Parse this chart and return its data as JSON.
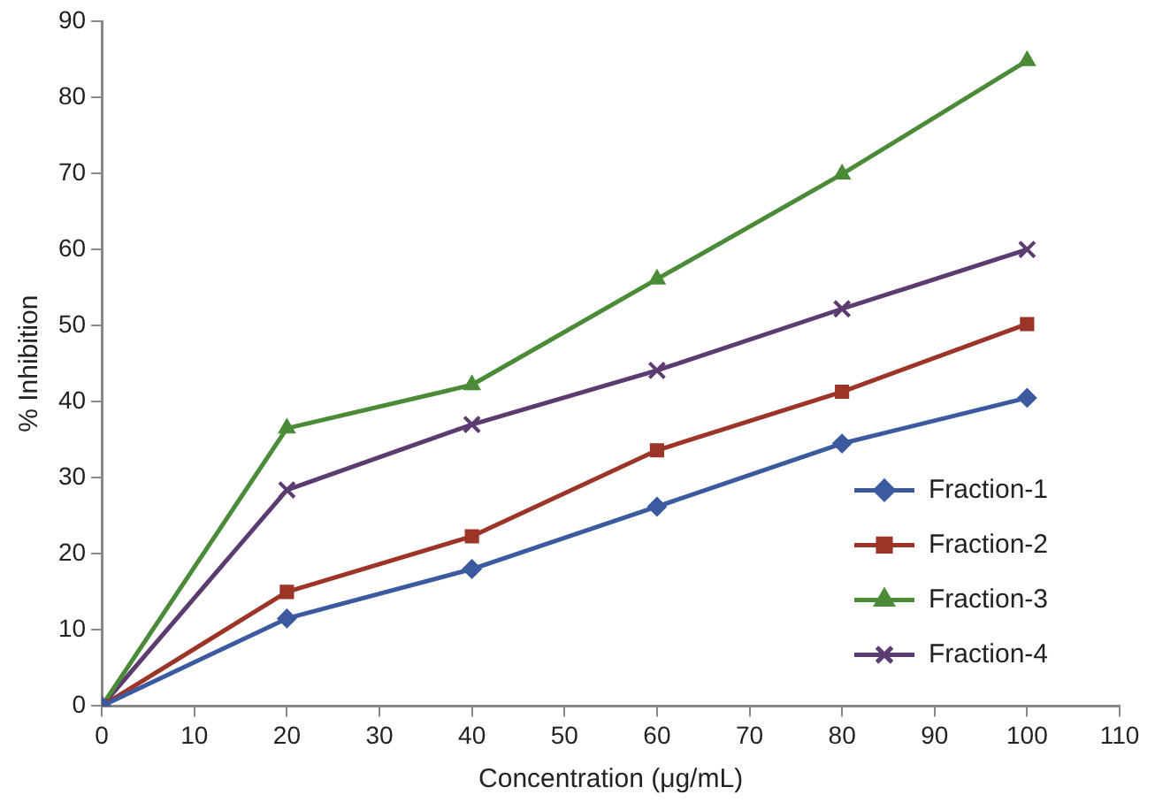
{
  "chart_data": {
    "type": "line",
    "xlabel": "Concentration (μg/mL)",
    "ylabel": "% Inhibition",
    "x": [
      0,
      20,
      40,
      60,
      80,
      100
    ],
    "xlim": [
      0,
      110
    ],
    "xticks": [
      0,
      10,
      20,
      30,
      40,
      50,
      60,
      70,
      80,
      90,
      100,
      110
    ],
    "ylim": [
      0,
      90
    ],
    "yticks": [
      0,
      10,
      20,
      30,
      40,
      50,
      60,
      70,
      80,
      90
    ],
    "grid": false,
    "legend": "bottom right",
    "line_style": "solid",
    "series": [
      {
        "name": "Fraction-1",
        "color": "#3b5aa0",
        "marker": "diamond",
        "values": [
          0,
          11.5,
          18,
          26.2,
          34.5,
          40.5
        ]
      },
      {
        "name": "Fraction-2",
        "color": "#9c3528",
        "marker": "square",
        "values": [
          0,
          15,
          22.3,
          33.6,
          41.3,
          50.2
        ]
      },
      {
        "name": "Fraction-3",
        "color": "#4b8b38",
        "marker": "triangle",
        "values": [
          0,
          36.5,
          42.2,
          56.1,
          69.9,
          84.8
        ]
      },
      {
        "name": "Fraction-4",
        "color": "#5b3b70",
        "marker": "cross",
        "values": [
          0,
          28.4,
          37,
          44.1,
          52.2,
          60
        ]
      }
    ]
  }
}
